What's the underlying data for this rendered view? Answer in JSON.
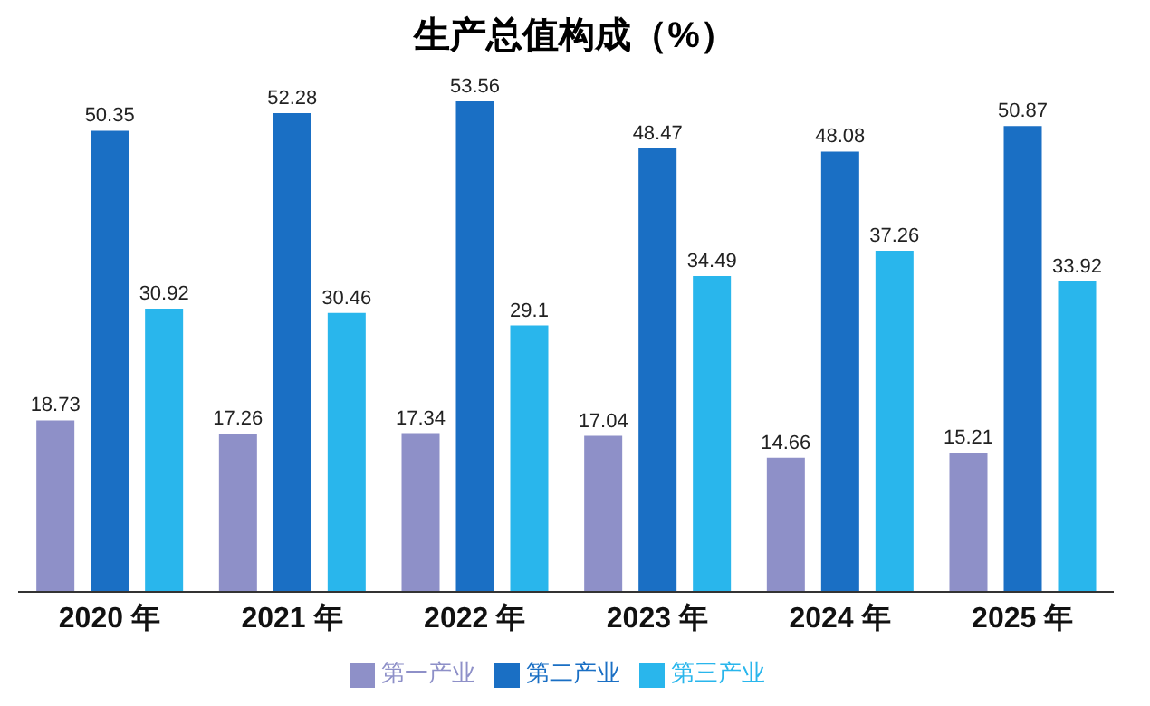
{
  "chart_data": {
    "type": "bar",
    "title": "生产总值构成（%）",
    "categories": [
      "2020 年",
      "2021 年",
      "2022 年",
      "2023 年",
      "2024 年",
      "2025 年"
    ],
    "series": [
      {
        "name": "第一产业",
        "color": "#8e90c8",
        "values": [
          18.73,
          17.26,
          17.34,
          17.04,
          14.66,
          15.21
        ]
      },
      {
        "name": "第二产业",
        "color": "#1a6fc4",
        "values": [
          50.35,
          52.28,
          53.56,
          48.47,
          48.08,
          50.87
        ]
      },
      {
        "name": "第三产业",
        "color": "#29b6ec",
        "values": [
          30.92,
          30.46,
          29.1,
          34.49,
          37.26,
          33.92
        ]
      }
    ],
    "data_labels": true,
    "legend": "bottom",
    "grid": false
  }
}
